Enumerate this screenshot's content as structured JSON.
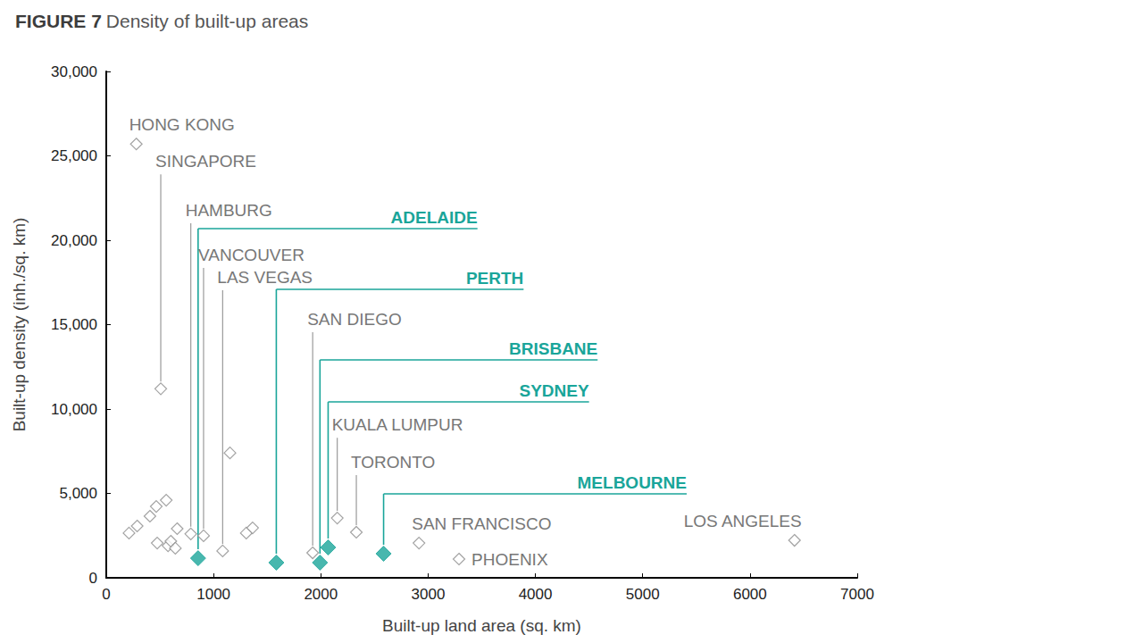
{
  "chart_data": {
    "type": "scatter",
    "title": "FIGURE 7 Density of built-up areas",
    "x_label": "Built-up land area (sq. km)",
    "y_label": "Built-up density (inh./sq. km)",
    "xlim": [
      0,
      7000
    ],
    "xticks": [
      0,
      1000,
      2000,
      3000,
      4000,
      5000,
      6000,
      7000
    ],
    "ylim": [
      0,
      30000
    ],
    "yticks": [
      0,
      {
        "value": 5000,
        "label": "5,000"
      },
      {
        "value": 10000,
        "label": "10,000"
      },
      {
        "value": 15000,
        "label": "15,000"
      },
      {
        "value": 20000,
        "label": "20,000"
      },
      {
        "value": 25000,
        "label": "25,000"
      },
      {
        "value": 30000,
        "label": "30,000"
      }
    ],
    "grid": false,
    "series": [
      {
        "color": "#8c8c8c",
        "marker": "diamond-open",
        "x": [
          212,
          280,
          288,
          407,
          466,
          475,
          508,
          559,
          576,
          602,
          644,
          661,
          788,
          907,
          1085,
          1153,
          1305,
          1364,
          1924,
          2153,
          2331,
          2915,
          3288,
          6415
        ],
        "values": [
          2650,
          25700,
          3070,
          3650,
          4230,
          2060,
          11200,
          4600,
          1900,
          2170,
          1750,
          2910,
          2600,
          2490,
          1590,
          7400,
          2650,
          2960,
          1480,
          3540,
          2700,
          2060,
          1110,
          2220
        ],
        "labels": [
          null,
          "HONG KONG",
          null,
          null,
          null,
          null,
          "SINGAPORE",
          null,
          null,
          null,
          null,
          null,
          "HAMBURG",
          "VANCOUVER",
          "LAS VEGAS",
          null,
          null,
          null,
          "SAN DIEGO",
          "KUALA LUMPUR",
          "TORONTO",
          "SAN FRANCISCO",
          "PHOENIX",
          "LOS ANGELES"
        ]
      },
      {
        "color": "#1aa59a",
        "marker": "diamond",
        "x": [
          856,
          1585,
          1992,
          2068,
          2585
        ],
        "values": [
          1160,
          900,
          900,
          1800,
          1430
        ],
        "labels": [
          "ADELAIDE",
          "PERTH",
          "BRISBANE",
          "SYDNEY",
          "MELBOURNE"
        ]
      }
    ]
  }
}
